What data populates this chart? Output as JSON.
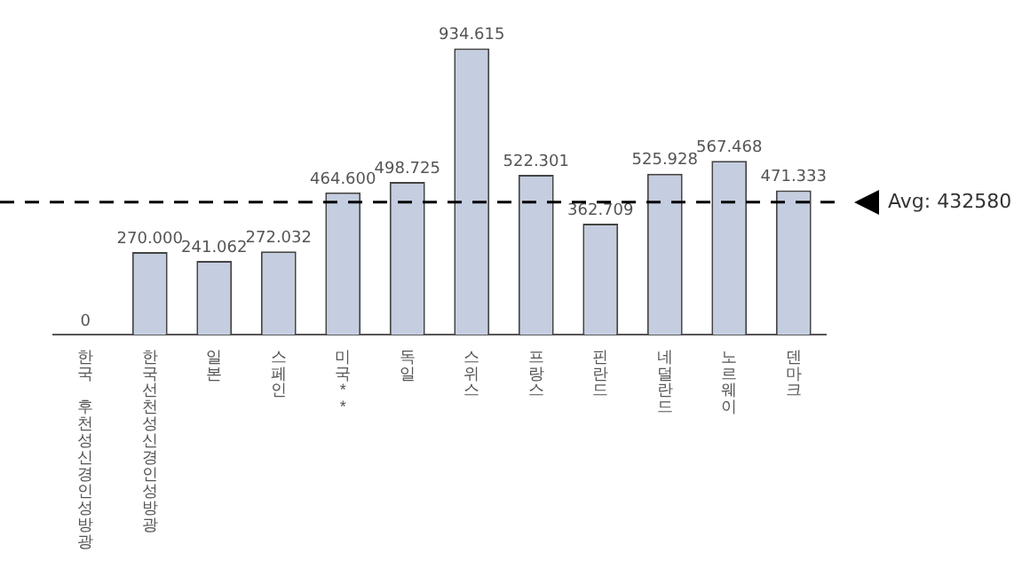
{
  "chart_data": {
    "type": "bar",
    "categories": [
      "한국 후천성신경인성방광",
      "한국선천성신경인성방광",
      "일본",
      "스페인",
      "미국**",
      "독일",
      "스위스",
      "프랑스",
      "핀란드",
      "네덜란드",
      "노르웨이",
      "덴마크"
    ],
    "values": [
      0,
      270000,
      241062,
      272032,
      464600,
      498725,
      934615,
      522301,
      362709,
      525928,
      567468,
      471333
    ],
    "value_labels": [
      "0",
      "270.000",
      "241.062",
      "272.032",
      "464.600",
      "498.725",
      "934.615",
      "522.301",
      "362.709",
      "525.928",
      "567.468",
      "471.333"
    ],
    "color": "#c5cee0",
    "ref_lines": [
      {
        "axis": "y",
        "value": 432580,
        "label": "Avg: 432580",
        "color": "#000000",
        "line_style": "dashed"
      }
    ],
    "grid": false,
    "legend": false
  }
}
